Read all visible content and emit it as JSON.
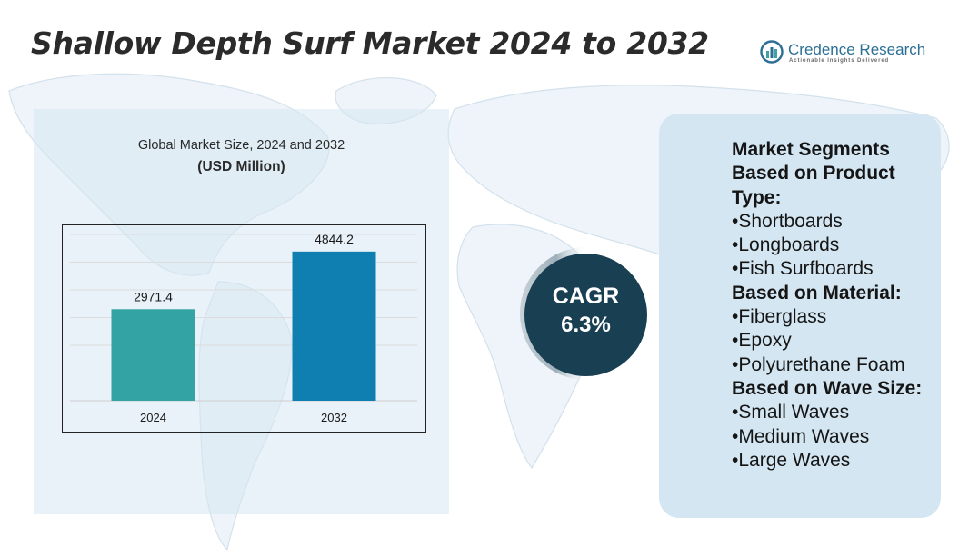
{
  "title": "Shallow Depth Surf Market 2024 to 2032",
  "logo": {
    "name": "Credence Research",
    "tagline": "Actionable Insights Delivered",
    "colors": [
      "#2b6f96",
      "#3fa0a6"
    ]
  },
  "chart_panel": {
    "title_line1": "Global Market Size, 2024 and 2032",
    "title_line2": "(USD Million)"
  },
  "chart_data": {
    "type": "bar",
    "title": "Global Market Size, 2024 and 2032",
    "subtitle": "(USD Million)",
    "categories": [
      "2024",
      "2032"
    ],
    "values": [
      2971.4,
      4844.2
    ],
    "value_labels": [
      "2971.4",
      "4844.2"
    ],
    "colors": [
      "#33a3a3",
      "#0f7fb2"
    ],
    "ylim": [
      0,
      5400
    ],
    "grid": true,
    "legend": "none"
  },
  "cagr": {
    "label": "CAGR",
    "value": "6.3%",
    "color": "#183f52"
  },
  "segments": {
    "heading": [
      "Market Segments",
      "Based on Product",
      "Type:"
    ],
    "groups": [
      {
        "items": [
          "•Shortboards",
          "•Longboards",
          "•Fish Surfboards"
        ]
      },
      {
        "title": "Based on Material:",
        "items": [
          "•Fiberglass",
          "•Epoxy",
          "•Polyurethane Foam"
        ]
      },
      {
        "title": "Based on Wave Size:",
        "items": [
          "•Small Waves",
          "•Medium Waves",
          "•Large Waves"
        ]
      }
    ]
  }
}
